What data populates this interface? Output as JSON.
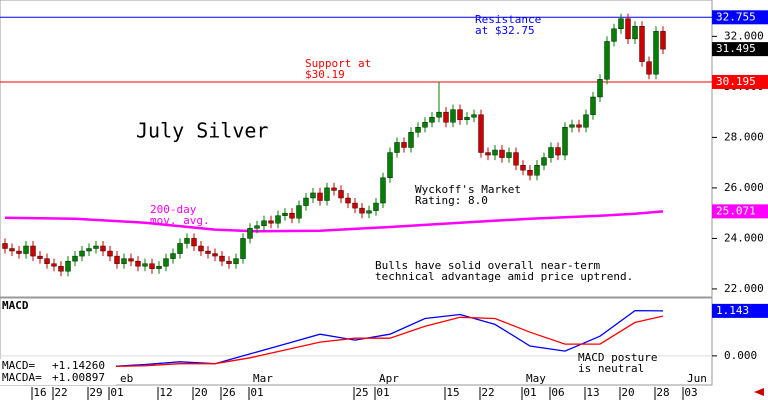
{
  "chart_data": [
    {
      "type": "candlestick",
      "title": "July Silver",
      "x": [
        0,
        1,
        2,
        3,
        4,
        5,
        6,
        7,
        8,
        9,
        10,
        11,
        12,
        13,
        14,
        15,
        16,
        17,
        18,
        19,
        20,
        21,
        22,
        23,
        24,
        25,
        26,
        27,
        28,
        29,
        30,
        31,
        32,
        33,
        34,
        35,
        36,
        37,
        38,
        39,
        40,
        41,
        42,
        43,
        44,
        45,
        46,
        47,
        48,
        49,
        50,
        51,
        52,
        53,
        54,
        55,
        56,
        57,
        58,
        59,
        60,
        61,
        62,
        63,
        64,
        65,
        66,
        67,
        68,
        69,
        70,
        71,
        72,
        73,
        74,
        75,
        76,
        77,
        78,
        79,
        80,
        81,
        82,
        83,
        84,
        85,
        86,
        87,
        88,
        89,
        90,
        91,
        92,
        93,
        94
      ],
      "open": [
        23.8,
        23.6,
        23.5,
        23.4,
        23.7,
        23.3,
        23.2,
        23.0,
        22.9,
        22.7,
        23.1,
        23.3,
        23.5,
        23.6,
        23.7,
        23.5,
        23.3,
        23.0,
        23.2,
        23.1,
        22.9,
        23.0,
        22.8,
        22.9,
        23.2,
        23.4,
        23.8,
        24.0,
        23.7,
        23.5,
        23.4,
        23.3,
        23.1,
        23.0,
        23.2,
        24.0,
        24.4,
        24.5,
        24.7,
        24.6,
        24.9,
        25.0,
        24.8,
        25.3,
        25.6,
        25.8,
        25.5,
        26.0,
        25.9,
        25.6,
        25.4,
        25.2,
        25.0,
        25.1,
        25.4,
        26.4,
        27.4,
        27.8,
        27.6,
        28.2,
        28.4,
        28.6,
        28.8,
        29.0,
        28.6,
        29.1,
        28.7,
        28.8,
        28.9,
        27.4,
        27.3,
        27.5,
        27.2,
        27.4,
        26.9,
        26.7,
        26.5,
        26.9,
        27.2,
        27.6,
        27.3,
        28.4,
        28.5,
        28.4,
        28.9,
        29.6,
        30.3,
        31.8,
        32.3,
        32.7,
        31.9,
        32.4,
        31.0,
        30.5,
        32.2
      ],
      "high": [
        24.0,
        23.8,
        23.7,
        23.9,
        23.9,
        23.5,
        23.4,
        23.2,
        23.1,
        23.3,
        23.5,
        23.7,
        23.8,
        23.9,
        23.9,
        23.7,
        23.5,
        23.4,
        23.4,
        23.3,
        23.2,
        23.2,
        23.1,
        23.4,
        23.6,
        24.0,
        24.2,
        24.2,
        23.9,
        23.7,
        23.6,
        23.5,
        23.3,
        23.4,
        24.2,
        24.6,
        24.7,
        24.9,
        24.9,
        25.1,
        25.2,
        25.2,
        25.5,
        25.8,
        26.0,
        26.0,
        26.2,
        26.2,
        26.1,
        25.8,
        25.6,
        25.4,
        25.3,
        25.6,
        26.6,
        27.6,
        28.0,
        28.0,
        28.4,
        28.6,
        28.8,
        29.0,
        30.2,
        29.2,
        29.3,
        29.3,
        29.0,
        29.1,
        29.1,
        27.6,
        27.7,
        27.7,
        27.6,
        27.6,
        27.1,
        26.9,
        27.1,
        27.4,
        27.8,
        27.8,
        28.6,
        28.7,
        28.7,
        29.1,
        29.8,
        30.5,
        32.0,
        32.5,
        32.9,
        32.9,
        32.6,
        32.6,
        31.2,
        32.4,
        32.4
      ],
      "low": [
        23.4,
        23.3,
        23.2,
        23.2,
        23.1,
        23.0,
        22.8,
        22.7,
        22.5,
        22.5,
        22.9,
        23.1,
        23.3,
        23.4,
        23.3,
        23.1,
        22.8,
        22.8,
        22.9,
        22.7,
        22.7,
        22.6,
        22.6,
        22.7,
        23.0,
        23.2,
        23.6,
        23.5,
        23.3,
        23.2,
        23.1,
        22.9,
        22.8,
        22.8,
        23.0,
        23.8,
        24.2,
        24.3,
        24.4,
        24.4,
        24.7,
        24.6,
        24.6,
        25.1,
        25.4,
        25.3,
        25.3,
        25.7,
        25.4,
        25.2,
        25.0,
        24.8,
        24.8,
        24.9,
        25.2,
        26.2,
        27.2,
        27.4,
        27.4,
        28.0,
        28.2,
        28.4,
        28.6,
        28.4,
        28.4,
        28.5,
        28.5,
        28.6,
        27.2,
        27.1,
        27.1,
        27.0,
        27.0,
        26.7,
        26.5,
        26.3,
        26.3,
        26.7,
        27.0,
        27.1,
        27.1,
        28.2,
        28.2,
        28.2,
        28.7,
        29.4,
        30.1,
        31.6,
        32.1,
        31.7,
        31.7,
        30.8,
        30.3,
        30.3,
        31.3
      ],
      "close": [
        23.6,
        23.5,
        23.4,
        23.7,
        23.3,
        23.2,
        23.0,
        22.9,
        22.7,
        23.1,
        23.3,
        23.5,
        23.6,
        23.7,
        23.5,
        23.3,
        23.0,
        23.2,
        23.1,
        22.9,
        23.0,
        22.8,
        22.9,
        23.2,
        23.4,
        23.8,
        24.0,
        23.7,
        23.5,
        23.4,
        23.3,
        23.1,
        23.0,
        23.2,
        24.0,
        24.4,
        24.5,
        24.7,
        24.6,
        24.9,
        25.0,
        24.8,
        25.3,
        25.6,
        25.8,
        25.5,
        26.0,
        25.9,
        25.6,
        25.4,
        25.2,
        25.0,
        25.1,
        25.4,
        26.4,
        27.4,
        27.8,
        27.6,
        28.2,
        28.4,
        28.6,
        28.8,
        29.0,
        28.6,
        29.1,
        28.7,
        28.8,
        28.9,
        27.4,
        27.3,
        27.5,
        27.2,
        27.4,
        26.9,
        26.7,
        26.5,
        26.9,
        27.2,
        27.6,
        27.3,
        28.4,
        28.5,
        28.4,
        28.9,
        29.6,
        30.3,
        31.8,
        32.3,
        32.7,
        31.9,
        32.4,
        31.0,
        30.5,
        32.2,
        31.495
      ],
      "up_color": "#008000",
      "down_color": "#cc0000",
      "xlim": [
        -0.714,
        101
      ],
      "ylim": [
        21.68,
        33.44
      ],
      "yticks": [
        {
          "value": 22,
          "label": "22.000"
        },
        {
          "value": 24,
          "label": "24.000"
        },
        {
          "value": 26,
          "label": "26.000"
        },
        {
          "value": 28,
          "label": "28.000"
        },
        {
          "value": 30,
          "label": "30.000"
        },
        {
          "value": 32,
          "label": "32.000"
        }
      ],
      "levels": [
        {
          "value": 32.755,
          "label": "32.755",
          "color": "#0000ff",
          "text": [
            "Resistance",
            "at $32.75"
          ]
        },
        {
          "value": 30.195,
          "label": "30.195",
          "color": "#ff0000",
          "text": [
            "Support at",
            "$30.19"
          ]
        }
      ],
      "last": {
        "value": 31.495,
        "label": "31.495"
      },
      "overlay": {
        "name": [
          "200-day",
          "mov. avg."
        ],
        "color": "#ff00ff",
        "x": [
          0,
          10,
          20,
          30,
          36,
          45,
          55,
          65,
          75,
          85,
          90,
          94
        ],
        "values": [
          24.82,
          24.78,
          24.62,
          24.35,
          24.28,
          24.3,
          24.45,
          24.62,
          24.78,
          24.9,
          24.98,
          25.071
        ],
        "last_label": {
          "value": 25.071,
          "label": "25.071"
        }
      },
      "annotations": [
        {
          "lines": [
            "Wyckoff's Market",
            "Rating: 8.0"
          ]
        },
        {
          "lines": [
            "Bulls have solid overall near-term",
            "technical advantage amid price uptrend."
          ]
        }
      ]
    },
    {
      "type": "line",
      "title": "MACD",
      "xlim": [
        -0.714,
        101
      ],
      "ylim": [
        -0.74,
        1.47
      ],
      "yticks": [
        {
          "value": 0,
          "label": "0.000"
        }
      ],
      "xticks": [
        {
          "value": 5,
          "label": "16"
        },
        {
          "value": 8,
          "label": "22"
        },
        {
          "value": 13,
          "label": "29"
        },
        {
          "value": 16,
          "label": "01"
        },
        {
          "value": 23,
          "label": "12"
        },
        {
          "value": 28,
          "label": "20"
        },
        {
          "value": 32,
          "label": "26"
        },
        {
          "value": 36,
          "label": "01"
        },
        {
          "value": 51,
          "label": "25"
        },
        {
          "value": 54,
          "label": "01"
        },
        {
          "value": 64,
          "label": "15"
        },
        {
          "value": 69,
          "label": "22"
        },
        {
          "value": 75,
          "label": "01"
        },
        {
          "value": 79,
          "label": "06"
        },
        {
          "value": 84,
          "label": "13"
        },
        {
          "value": 89,
          "label": "20"
        },
        {
          "value": 94,
          "label": "28"
        },
        {
          "value": 98,
          "label": "03"
        }
      ],
      "month_ticks": [
        {
          "value": 17,
          "label": "eb"
        },
        {
          "value": 36,
          "label": "Mar"
        },
        {
          "value": 54,
          "label": "Apr"
        },
        {
          "value": 75,
          "label": "May"
        },
        {
          "value": 98,
          "label": "Jun"
        }
      ],
      "series": [
        {
          "name": "MACD=",
          "readout": {
            "value": 1.1426,
            "label": "+1.14260"
          },
          "color": "#0000ff",
          "x": [
            0,
            5,
            10,
            15,
            20,
            25,
            30,
            35,
            40,
            45,
            50,
            55,
            60,
            65,
            70,
            75,
            80,
            85,
            90,
            94
          ],
          "values": [
            -0.28,
            -0.28,
            -0.25,
            -0.27,
            -0.22,
            -0.15,
            -0.2,
            0.05,
            0.3,
            0.55,
            0.4,
            0.55,
            0.95,
            1.05,
            0.8,
            0.25,
            0.12,
            0.5,
            1.15,
            1.143
          ],
          "last_label": {
            "value": 1.143,
            "label": "1.143"
          }
        },
        {
          "name": "MACDA=",
          "readout": {
            "value": 1.00897,
            "label": "+1.00897"
          },
          "color": "#ff0000",
          "x": [
            0,
            5,
            10,
            15,
            20,
            25,
            30,
            35,
            40,
            45,
            50,
            55,
            60,
            65,
            70,
            75,
            80,
            85,
            90,
            94
          ],
          "values": [
            -0.35,
            -0.32,
            -0.28,
            -0.27,
            -0.25,
            -0.2,
            -0.2,
            -0.05,
            0.15,
            0.35,
            0.45,
            0.45,
            0.75,
            0.98,
            0.95,
            0.6,
            0.3,
            0.3,
            0.85,
            1.009
          ]
        }
      ],
      "annotations": [
        {
          "lines": [
            "MACD posture",
            "is neutral"
          ]
        }
      ]
    }
  ]
}
